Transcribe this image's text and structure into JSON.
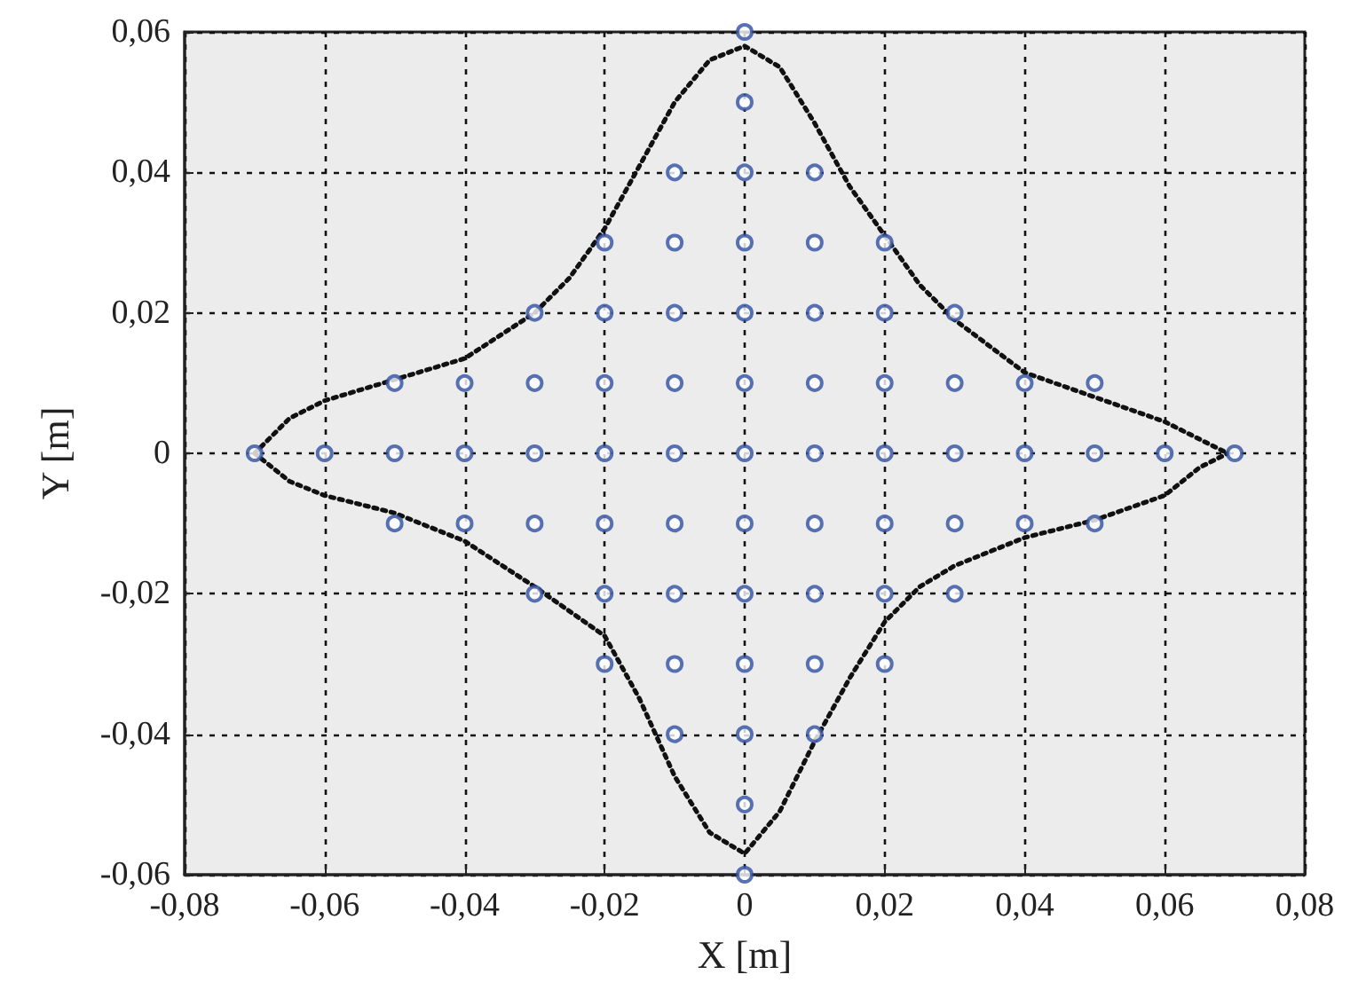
{
  "chart_data": {
    "type": "scatter",
    "xlabel": "X [m]",
    "ylabel": "Y [m]",
    "xlim": [
      -0.08,
      0.08
    ],
    "ylim": [
      -0.06,
      0.06
    ],
    "xticks": [
      {
        "value": -0.08,
        "label": "-0,08"
      },
      {
        "value": -0.06,
        "label": "-0,06"
      },
      {
        "value": -0.04,
        "label": "-0,04"
      },
      {
        "value": -0.02,
        "label": "-0,02"
      },
      0,
      {
        "value": 0.02,
        "label": "0,02"
      },
      {
        "value": 0.04,
        "label": "0,04"
      },
      {
        "value": 0.06,
        "label": "0,06"
      },
      {
        "value": 0.08,
        "label": "0,08"
      }
    ],
    "yticks": [
      {
        "value": -0.06,
        "label": "-0,06"
      },
      {
        "value": -0.04,
        "label": "-0,04"
      },
      {
        "value": -0.02,
        "label": "-0,02"
      },
      0,
      {
        "value": 0.02,
        "label": "0,02"
      },
      {
        "value": 0.04,
        "label": "0,04"
      },
      {
        "value": 0.06,
        "label": "0,06"
      }
    ],
    "grid": true,
    "legend": false,
    "series": [
      {
        "type": "scatter",
        "color": "#2e4fa0",
        "marker": "circle",
        "x": [
          0,
          0,
          -0.01,
          0,
          0.01,
          -0.02,
          -0.01,
          0,
          0.01,
          0.02,
          -0.03,
          -0.02,
          -0.01,
          0,
          0.01,
          0.02,
          0.03,
          -0.05,
          -0.04,
          -0.03,
          -0.02,
          -0.01,
          0,
          0.01,
          0.02,
          0.03,
          0.04,
          0.05,
          -0.07,
          -0.06,
          -0.05,
          -0.04,
          -0.03,
          -0.02,
          -0.01,
          0,
          0.01,
          0.02,
          0.03,
          0.04,
          0.05,
          0.06,
          0.07,
          -0.05,
          -0.04,
          -0.03,
          -0.02,
          -0.01,
          0,
          0.01,
          0.02,
          0.03,
          0.04,
          0.05,
          -0.03,
          -0.02,
          -0.01,
          0,
          0.01,
          0.02,
          0.03,
          -0.02,
          -0.01,
          0,
          0.01,
          0.02,
          -0.01,
          0,
          0.01,
          0,
          0
        ],
        "values": [
          0.06,
          0.05,
          0.04,
          0.04,
          0.04,
          0.03,
          0.03,
          0.03,
          0.03,
          0.03,
          0.02,
          0.02,
          0.02,
          0.02,
          0.02,
          0.02,
          0.02,
          0.01,
          0.01,
          0.01,
          0.01,
          0.01,
          0.01,
          0.01,
          0.01,
          0.01,
          0.01,
          0.01,
          0,
          0,
          0,
          0,
          0,
          0,
          0,
          0,
          0,
          0,
          0,
          0,
          0,
          0,
          0,
          -0.01,
          -0.01,
          -0.01,
          -0.01,
          -0.01,
          -0.01,
          -0.01,
          -0.01,
          -0.01,
          -0.01,
          -0.01,
          -0.02,
          -0.02,
          -0.02,
          -0.02,
          -0.02,
          -0.02,
          -0.02,
          -0.03,
          -0.03,
          -0.03,
          -0.03,
          -0.03,
          -0.04,
          -0.04,
          -0.04,
          -0.05,
          -0.06
        ]
      },
      {
        "type": "line",
        "color": "#111111",
        "marker": "none",
        "line_style": "dotted",
        "x": [
          -0.07,
          -0.065,
          -0.06,
          -0.05,
          -0.04,
          -0.03,
          -0.025,
          -0.02,
          -0.015,
          -0.01,
          -0.005,
          0,
          0.005,
          0.01,
          0.015,
          0.02,
          0.025,
          0.03,
          0.04,
          0.05,
          0.06,
          0.065,
          0.069
        ],
        "values": [
          0,
          0.005,
          0.0075,
          0.0105,
          0.0135,
          0.02,
          0.025,
          0.032,
          0.041,
          0.05,
          0.056,
          0.058,
          0.055,
          0.047,
          0.038,
          0.031,
          0.024,
          0.019,
          0.0115,
          0.008,
          0.0045,
          0.002,
          0
        ]
      },
      {
        "type": "line",
        "color": "#111111",
        "marker": "none",
        "line_style": "dotted",
        "x": [
          -0.07,
          -0.065,
          -0.06,
          -0.05,
          -0.04,
          -0.03,
          -0.02,
          -0.015,
          -0.01,
          -0.005,
          0,
          0.005,
          0.01,
          0.015,
          0.02,
          0.025,
          0.03,
          0.04,
          0.05,
          0.06,
          0.065,
          0.069
        ],
        "values": [
          0,
          -0.004,
          -0.006,
          -0.0085,
          -0.0125,
          -0.019,
          -0.026,
          -0.035,
          -0.046,
          -0.054,
          -0.057,
          -0.051,
          -0.041,
          -0.032,
          -0.024,
          -0.019,
          -0.016,
          -0.012,
          -0.0095,
          -0.006,
          -0.002,
          0
        ]
      }
    ]
  }
}
